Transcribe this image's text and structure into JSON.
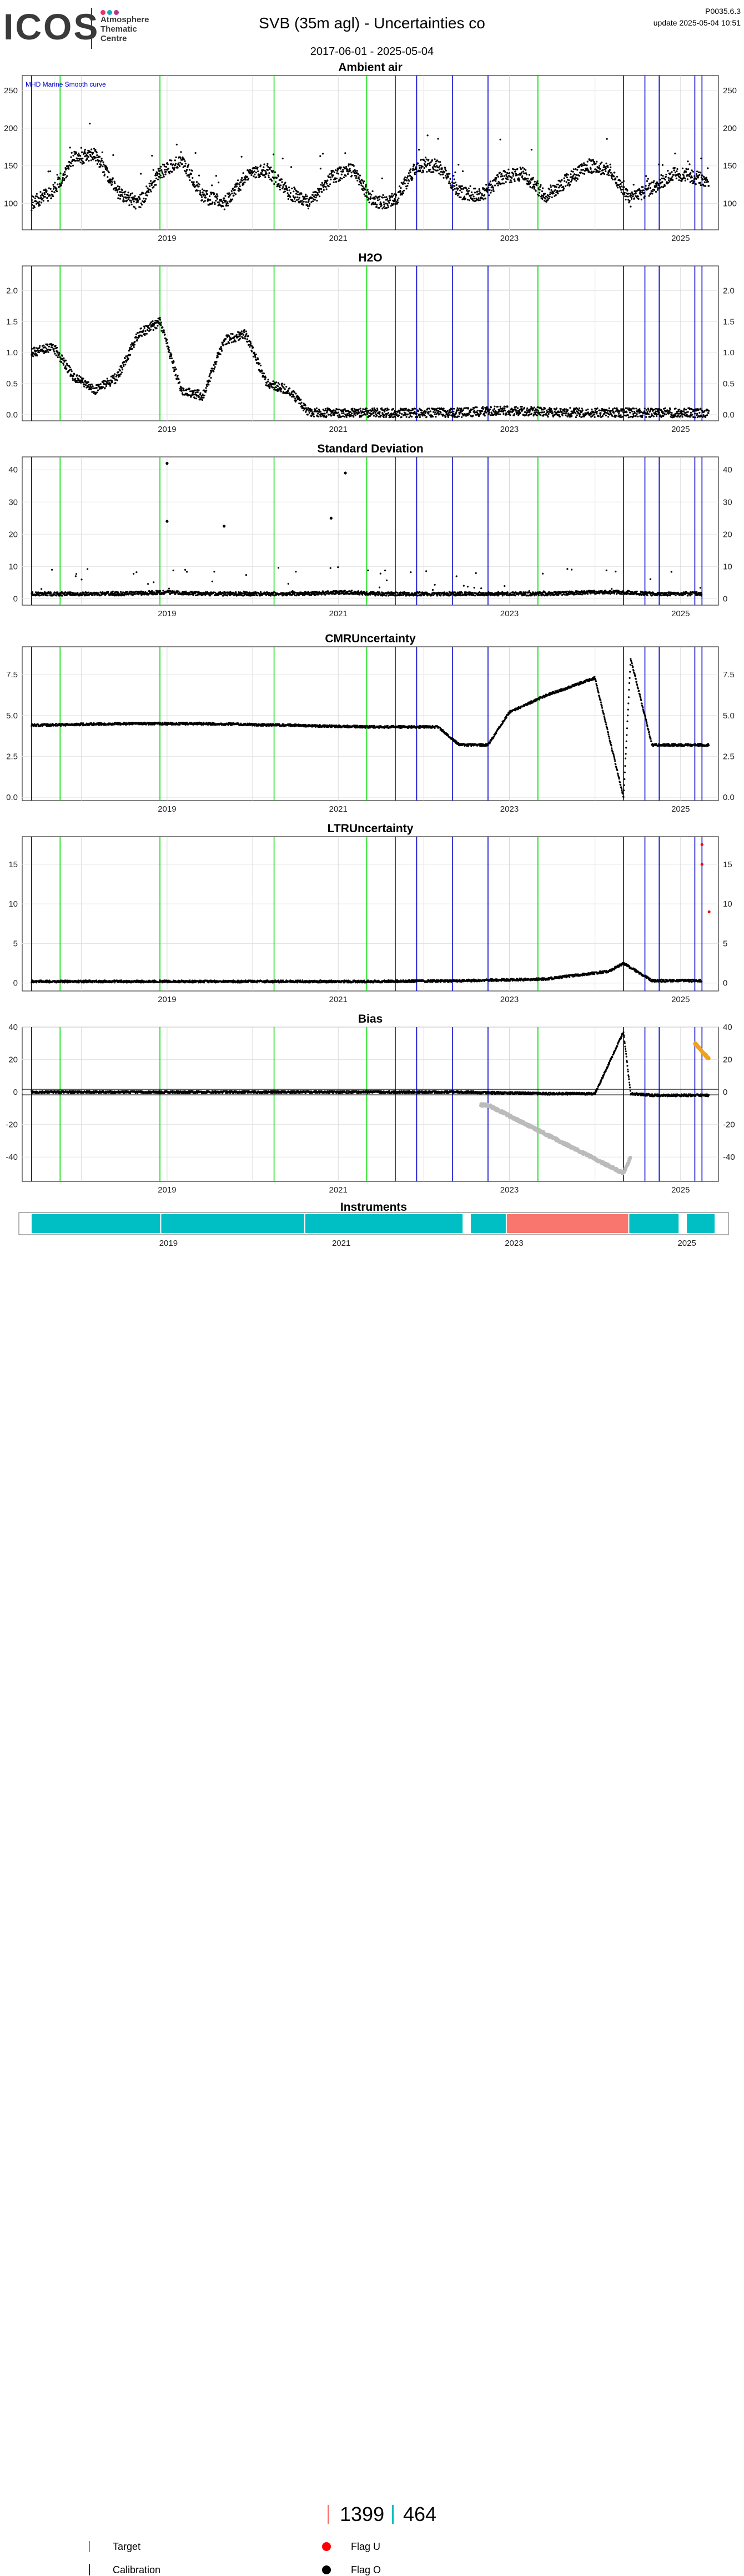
{
  "header": {
    "logo_text": "ICOS",
    "logo_sub": [
      "Atmosphere",
      "Thematic",
      "Centre"
    ],
    "logo_dot_colors": [
      "#e8336d",
      "#1aa6c8",
      "#b0378d"
    ],
    "title": "SVB  (35m agl) - Uncertainties co",
    "date_range": "2017-06-01 - 2025-05-04",
    "version": "P0035.6.3",
    "update": "update  2025-05-04 10:51"
  },
  "annotation": "MHD Marine Smooth curve",
  "colors": {
    "target": "#00dd00",
    "calibration": "#0000cc",
    "flag_u": "#ff0000",
    "flag_o": "#000000",
    "bias_gray": "#bbbbbb",
    "bias_orange": "#f0a020",
    "instrument_teal": "#00bfc4",
    "instrument_salmon": "#f8766d"
  },
  "chart_data": [
    {
      "type": "scatter",
      "title": "Ambient air",
      "ylim": [
        65,
        270
      ],
      "yticks": [
        100,
        150,
        200,
        250
      ],
      "xticks": [
        "2019",
        "2021",
        "2023",
        "2025"
      ],
      "grid": true,
      "series": [
        {
          "x": [
            "2017-06",
            "2017-09",
            "2017-12",
            "2018-03",
            "2018-06",
            "2018-09",
            "2018-12",
            "2019-03",
            "2019-06",
            "2019-09",
            "2019-12",
            "2020-03",
            "2020-06",
            "2020-09",
            "2020-12",
            "2021-03",
            "2021-06",
            "2021-09",
            "2021-12",
            "2022-03",
            "2022-06",
            "2022-09",
            "2022-12",
            "2023-03",
            "2023-06",
            "2023-09",
            "2023-12",
            "2024-03",
            "2024-06",
            "2024-09",
            "2024-12",
            "2025-03",
            "2025-05"
          ],
          "y": [
            100,
            115,
            160,
            165,
            115,
            100,
            140,
            160,
            110,
            100,
            135,
            145,
            115,
            100,
            135,
            145,
            100,
            105,
            150,
            150,
            115,
            110,
            135,
            140,
            110,
            130,
            150,
            145,
            105,
            120,
            140,
            135,
            130
          ]
        }
      ]
    },
    {
      "type": "scatter",
      "title": "H2O",
      "ylim": [
        -0.1,
        2.4
      ],
      "yticks": [
        0.0,
        0.5,
        1.0,
        1.5,
        2.0
      ],
      "xticks": [
        "2019",
        "2021",
        "2023",
        "2025"
      ],
      "grid": true,
      "series": [
        {
          "x": [
            "2017-06",
            "2017-09",
            "2017-12",
            "2018-03",
            "2018-06",
            "2018-09",
            "2018-12",
            "2019-03",
            "2019-06",
            "2019-09",
            "2019-12",
            "2020-03",
            "2020-06",
            "2020-09",
            "2020-12",
            "2021-06",
            "2021-12",
            "2022-06",
            "2022-12",
            "2023-06",
            "2023-12",
            "2024-06",
            "2024-09",
            "2024-12",
            "2025-05"
          ],
          "y": [
            1.0,
            1.1,
            0.6,
            0.4,
            0.6,
            1.3,
            1.5,
            0.4,
            0.3,
            1.2,
            1.3,
            0.5,
            0.4,
            0.03,
            0.03,
            0.03,
            0.03,
            0.03,
            0.07,
            0.04,
            0.03,
            0.03,
            0.03,
            0.03,
            0.03
          ]
        }
      ]
    },
    {
      "type": "scatter",
      "title": "Standard Deviation",
      "ylim": [
        -2,
        44
      ],
      "yticks": [
        0,
        10,
        20,
        30,
        40
      ],
      "xticks": [
        "2019",
        "2021",
        "2023",
        "2025"
      ],
      "grid": true,
      "series": [
        {
          "x": [
            "2017-06",
            "2018-06",
            "2019-01",
            "2019-06",
            "2020-06",
            "2021-03",
            "2021-06",
            "2022-06",
            "2023-06",
            "2024-01",
            "2024-05",
            "2024-09",
            "2025-04"
          ],
          "y": [
            1.5,
            1.5,
            2,
            1.5,
            1.5,
            2,
            1.5,
            1.5,
            1.5,
            2,
            2,
            1.5,
            1.5
          ]
        },
        {
          "name": "outliers",
          "x": [
            "2019-01",
            "2019-01",
            "2019-09",
            "2020-12",
            "2021-02"
          ],
          "y": [
            42,
            24,
            22.5,
            25,
            39
          ]
        }
      ]
    },
    {
      "type": "scatter",
      "title": "CMRUncertainty",
      "ylim": [
        -0.2,
        9.2
      ],
      "yticks": [
        0.0,
        2.5,
        5.0,
        7.5
      ],
      "xticks": [
        "2019",
        "2021",
        "2023",
        "2025"
      ],
      "grid": true,
      "series": [
        {
          "x": [
            "2017-06",
            "2018-06",
            "2019-06",
            "2020-06",
            "2021-06",
            "2022-03",
            "2022-06",
            "2022-10",
            "2023-01",
            "2023-06",
            "2024-01",
            "2024-05",
            "2024-06",
            "2024-09",
            "2025-05"
          ],
          "y": [
            4.4,
            4.5,
            4.5,
            4.4,
            4.3,
            4.3,
            3.2,
            3.2,
            5.2,
            6.2,
            7.3,
            0.0,
            8.5,
            3.2,
            3.2
          ]
        }
      ]
    },
    {
      "type": "scatter",
      "title": "LTRUncertainty",
      "ylim": [
        -1,
        18.5
      ],
      "yticks": [
        0,
        5,
        10,
        15
      ],
      "xticks": [
        "2019",
        "2021",
        "2023",
        "2025"
      ],
      "grid": true,
      "series": [
        {
          "x": [
            "2017-06",
            "2018-06",
            "2019-06",
            "2020-06",
            "2021-06",
            "2022-06",
            "2023-06",
            "2024-03",
            "2024-05",
            "2024-09",
            "2025-04"
          ],
          "y": [
            0.2,
            0.2,
            0.2,
            0.2,
            0.2,
            0.3,
            0.5,
            1.5,
            2.5,
            0.3,
            0.3
          ]
        },
        {
          "name": "flag-u",
          "x": [
            "2025-04",
            "2025-04",
            "2025-05"
          ],
          "y": [
            15,
            17.5,
            9
          ]
        }
      ]
    },
    {
      "type": "scatter",
      "title": "Bias",
      "ylim": [
        -55,
        40
      ],
      "yticks": [
        -40,
        -20,
        0,
        20,
        40
      ],
      "xticks": [
        "2019",
        "2021",
        "2023",
        "2025"
      ],
      "grid": true,
      "series": [
        {
          "x": [
            "2017-06",
            "2018-06",
            "2019-06",
            "2020-06",
            "2021-06",
            "2022-06",
            "2023-06",
            "2024-01",
            "2024-05",
            "2024-06",
            "2024-09",
            "2025-05"
          ],
          "y": [
            0,
            0,
            0,
            0,
            0,
            0,
            -1,
            -1,
            37,
            -1,
            -2,
            -2
          ]
        },
        {
          "name": "gray",
          "x": [
            "2022-09",
            "2022-10",
            "2024-05",
            "2024-06"
          ],
          "y": [
            -8,
            -8,
            -50,
            -40
          ]
        },
        {
          "name": "orange",
          "x": [
            "2025-03",
            "2025-05"
          ],
          "y": [
            30,
            20
          ]
        }
      ]
    },
    {
      "type": "bar",
      "title": "Instruments",
      "xticks": [
        "2019",
        "2021",
        "2023",
        "2025"
      ],
      "segments": [
        {
          "start": "2017-06",
          "end": "2018-12",
          "instrument": "464"
        },
        {
          "start": "2018-12",
          "end": "2020-08",
          "instrument": "464"
        },
        {
          "start": "2020-08",
          "end": "2022-06",
          "instrument": "464"
        },
        {
          "start": "2022-07",
          "end": "2022-12",
          "instrument": "464"
        },
        {
          "start": "2022-12",
          "end": "2024-05",
          "instrument": "1399"
        },
        {
          "start": "2024-05",
          "end": "2024-12",
          "instrument": "464"
        },
        {
          "start": "2025-01",
          "end": "2025-05",
          "instrument": "464"
        }
      ]
    }
  ],
  "events": {
    "target": [
      "2017-10",
      "2018-12",
      "2020-04",
      "2021-05",
      "2023-05"
    ],
    "calibration": [
      "2017-06",
      "2021-09",
      "2021-12",
      "2022-05",
      "2022-10",
      "2024-05",
      "2024-08",
      "2024-10",
      "2025-03",
      "2025-04"
    ]
  },
  "instruments_counts": [
    {
      "label": "1399",
      "color": "#f8766d"
    },
    {
      "label": "464",
      "color": "#00bfc4"
    }
  ],
  "legend": {
    "target": "Target",
    "calibration": "Calibration",
    "flag_u": "Flag U",
    "flag_o": "Flag O"
  }
}
